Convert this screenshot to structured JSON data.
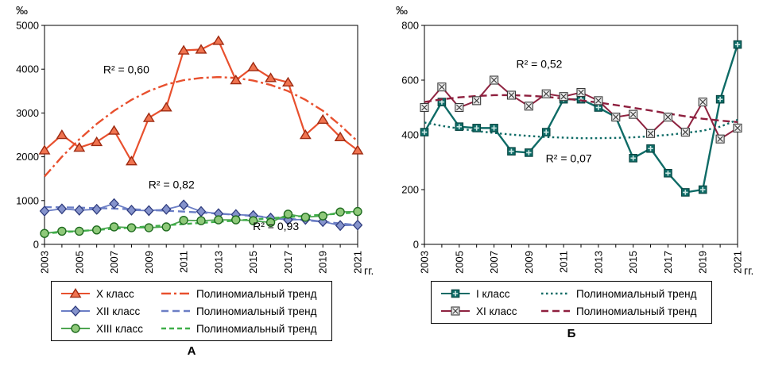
{
  "chart_data": [
    {
      "type": "line",
      "panel_label": "А",
      "y_axis_label": "‰",
      "x_axis_label": "гг.",
      "ylim": [
        0,
        5000
      ],
      "ytick_step": 1000,
      "xtick_every": 2,
      "x": [
        2003,
        2004,
        2005,
        2006,
        2007,
        2008,
        2009,
        2010,
        2011,
        2012,
        2013,
        2014,
        2015,
        2016,
        2017,
        2018,
        2019,
        2020,
        2021
      ],
      "series": [
        {
          "name": "X класс",
          "slug": "x-class",
          "marker": "triangle",
          "color": "#e8502e",
          "fill": "#f07450",
          "edge": "#9e2b12",
          "lw": 2.2,
          "values": [
            2150,
            2500,
            2210,
            2340,
            2600,
            1900,
            2890,
            3130,
            4430,
            4450,
            4650,
            3750,
            4050,
            3800,
            3700,
            2500,
            2850,
            2450,
            2150
          ],
          "trend": {
            "name": "Полиномиальный тренд",
            "style": "dashdot",
            "color": "#e8502e",
            "values": [
              1550,
              2000,
              2400,
              2750,
              3050,
              3300,
              3500,
              3650,
              3750,
              3800,
              3820,
              3800,
              3740,
              3640,
              3500,
              3300,
              3050,
              2720,
              2350
            ]
          }
        },
        {
          "name": "XII класс",
          "slug": "xii-class",
          "marker": "diamond",
          "color": "#6b7ec5",
          "fill": "#8593cc",
          "edge": "#2f3c7e",
          "lw": 1.8,
          "values": [
            760,
            810,
            780,
            800,
            930,
            780,
            770,
            800,
            900,
            750,
            700,
            680,
            660,
            600,
            560,
            570,
            520,
            430,
            440
          ],
          "trend": {
            "name": "Полиномиальный тренд",
            "style": "dash",
            "color": "#6b7ec5",
            "values": [
              850,
              845,
              838,
              828,
              816,
              802,
              786,
              768,
              748,
              726,
              702,
              676,
              648,
              618,
              586,
              552,
              516,
              478,
              438
            ]
          }
        },
        {
          "name": "XIII класс",
          "slug": "xiii-class",
          "marker": "circle",
          "color": "#4ea551",
          "fill": "#8fc97a",
          "edge": "#1e6b1e",
          "lw": 1.8,
          "values": [
            250,
            300,
            300,
            330,
            400,
            380,
            380,
            400,
            550,
            540,
            560,
            560,
            540,
            500,
            690,
            620,
            650,
            740,
            750
          ],
          "trend": {
            "name": "Полиномиальный тренд",
            "style": "dash-short",
            "color": "#3fae49",
            "values": [
              250,
              277,
              303,
              330,
              357,
              383,
              410,
              437,
              463,
              490,
              517,
              543,
              570,
              597,
              623,
              650,
              677,
              703,
              730
            ]
          }
        }
      ],
      "annotations": [
        {
          "text": "R² = 0,60",
          "x": 2007.7,
          "y": 3900
        },
        {
          "text": "R² = 0,82",
          "x": 2010.3,
          "y": 1280
        },
        {
          "text": "R² = 0,93",
          "x": 2016.3,
          "y": 330
        }
      ]
    },
    {
      "type": "line",
      "panel_label": "Б",
      "y_axis_label": "‰",
      "x_axis_label": "гг.",
      "ylim": [
        0,
        800
      ],
      "ytick_step": 200,
      "xtick_every": 2,
      "x": [
        2003,
        2004,
        2005,
        2006,
        2007,
        2008,
        2009,
        2010,
        2011,
        2012,
        2013,
        2014,
        2015,
        2016,
        2017,
        2018,
        2019,
        2020,
        2021
      ],
      "series": [
        {
          "name": "I класс",
          "slug": "i-class",
          "marker": "square-plus",
          "color": "#0e6b66",
          "fill": "#0e6b66",
          "edge": "#08433f",
          "lw": 2.4,
          "values": [
            410,
            520,
            430,
            425,
            425,
            340,
            335,
            410,
            530,
            530,
            500,
            465,
            315,
            350,
            260,
            190,
            200,
            530,
            730
          ],
          "trend": {
            "name": "Полиномиальный тренд",
            "style": "dot",
            "color": "#0e6b66",
            "values": [
              445,
              433,
              423,
              414,
              407,
              401,
              396,
              392,
              390,
              388,
              388,
              389,
              391,
              395,
              400,
              407,
              415,
              430,
              455
            ]
          }
        },
        {
          "name": "XI класс",
          "slug": "xi-class",
          "marker": "square-x",
          "color": "#8e2340",
          "fill": "#ececec",
          "edge": "#3a3a3a",
          "lw": 2,
          "values": [
            500,
            575,
            500,
            525,
            600,
            545,
            505,
            550,
            540,
            555,
            525,
            465,
            475,
            405,
            465,
            410,
            520,
            385,
            425
          ],
          "trend": {
            "name": "Полиномиальный тренд",
            "style": "dash",
            "color": "#8e1f3e",
            "values": [
              520,
              530,
              537,
              542,
              545,
              545,
              543,
              539,
              533,
              526,
              518,
              509,
              499,
              489,
              478,
              468,
              459,
              452,
              447
            ]
          }
        }
      ],
      "annotations": [
        {
          "text": "R² = 0,52",
          "x": 2009.6,
          "y": 645
        },
        {
          "text": "R² = 0,07",
          "x": 2011.3,
          "y": 300
        }
      ]
    }
  ]
}
